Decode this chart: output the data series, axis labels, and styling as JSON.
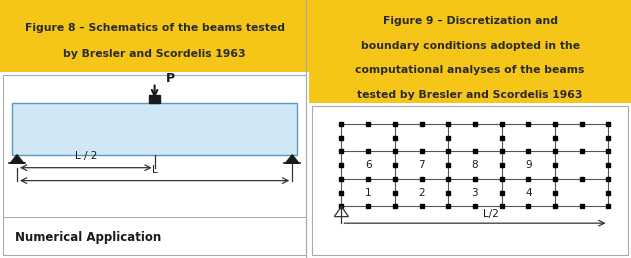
{
  "fig_width": 6.31,
  "fig_height": 2.58,
  "dpi": 100,
  "background_color": "#ffffff",
  "left_panel": {
    "title_line1": "Figure 8 – Schematics of the beams tested",
    "title_line2": "by Bresler and Scordelis 1963",
    "title_bg": "#F5C518",
    "title_color": "#2b2b2b",
    "beam_color": "#d0e8f5",
    "beam_border": "#5a9abf",
    "support_color": "#1a1a1a",
    "dim_color": "#444444",
    "bottom_label": "Numerical Application"
  },
  "right_panel": {
    "title_line1": "Figure 9 – Discretization and",
    "title_line2": "boundary conditions adopted in the",
    "title_line3": "computational analyses of the beams",
    "title_line4": "tested by Bresler and Scordelis 1963",
    "title_bg": "#F5C518",
    "title_color": "#2b2b2b"
  },
  "divider_color": "#cccccc"
}
